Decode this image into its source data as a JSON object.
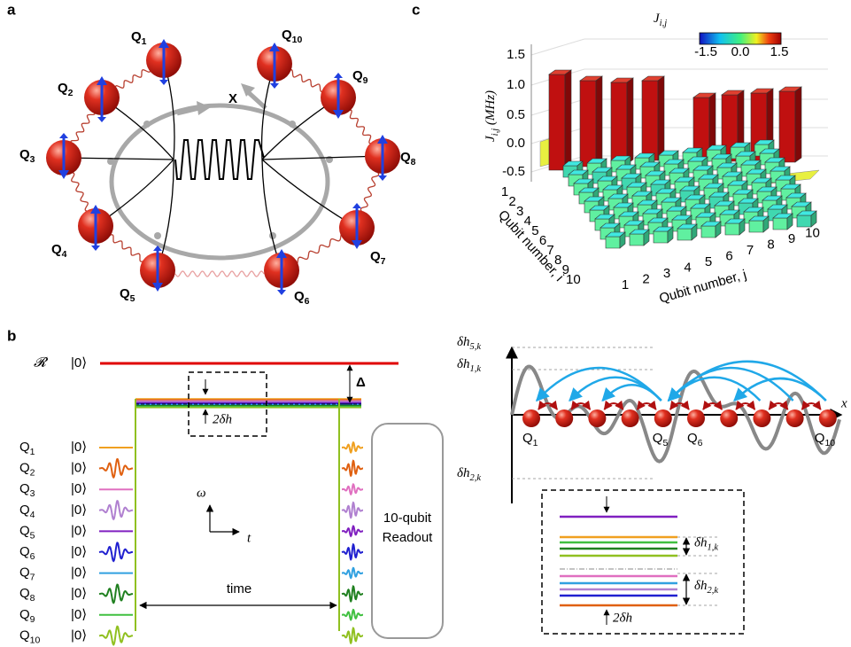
{
  "panel_labels": [
    "a",
    "b",
    "c"
  ],
  "panel_a": {
    "qubits": [
      {
        "base": "Q",
        "sub": "1"
      },
      {
        "base": "Q",
        "sub": "2"
      },
      {
        "base": "Q",
        "sub": "3"
      },
      {
        "base": "Q",
        "sub": "4"
      },
      {
        "base": "Q",
        "sub": "5"
      },
      {
        "base": "Q",
        "sub": "6"
      },
      {
        "base": "Q",
        "sub": "7"
      },
      {
        "base": "Q",
        "sub": "8"
      },
      {
        "base": "Q",
        "sub": "9"
      },
      {
        "base": "Q",
        "sub": "10"
      }
    ],
    "axis_label": "X"
  },
  "panel_b": {
    "reference": "𝓡",
    "ground_state": "|0⟩",
    "detuning": "Δ",
    "spread": "2δh",
    "qubits": [
      {
        "base": "Q",
        "sub": "1",
        "state": "|0⟩"
      },
      {
        "base": "Q",
        "sub": "2",
        "state": "|0⟩"
      },
      {
        "base": "Q",
        "sub": "3",
        "state": "|0⟩"
      },
      {
        "base": "Q",
        "sub": "4",
        "state": "|0⟩"
      },
      {
        "base": "Q",
        "sub": "5",
        "state": "|0⟩"
      },
      {
        "base": "Q",
        "sub": "6",
        "state": "|0⟩"
      },
      {
        "base": "Q",
        "sub": "7",
        "state": "|0⟩"
      },
      {
        "base": "Q",
        "sub": "8",
        "state": "|0⟩"
      },
      {
        "base": "Q",
        "sub": "9",
        "state": "|0⟩"
      },
      {
        "base": "Q",
        "sub": "10",
        "state": "|0⟩"
      }
    ],
    "freq_axis": "ω",
    "time_axis": "t",
    "time_label": "time",
    "readout": [
      "10-qubit",
      "Readout"
    ]
  },
  "panel_c": {
    "colorbar_title": {
      "base": "J",
      "sub": "i,j"
    },
    "colorbar_ticks": [
      "-1.5",
      "0.0",
      "1.5"
    ],
    "z_ticks": [
      "1.5",
      "1.0",
      "0.5",
      "0.0",
      "-0.5"
    ],
    "z_label": {
      "base": "J",
      "sub": "i,j",
      "unit": " (MHz)"
    },
    "i_label": "Qubit number, i",
    "j_label": "Qubit number, j",
    "i_ticks": [
      "1",
      "2",
      "3",
      "4",
      "5",
      "6",
      "7",
      "8",
      "9",
      "10"
    ],
    "j_ticks": [
      "1",
      "2",
      "3",
      "4",
      "5",
      "6",
      "7",
      "8",
      "9",
      "10"
    ]
  },
  "panel_d": {
    "levels": [
      {
        "base": "δh",
        "sub": "5,k"
      },
      {
        "base": "δh",
        "sub": "1,k"
      },
      {
        "base": "δh",
        "sub": "2,k"
      }
    ],
    "axis_label": "x",
    "qubit_labels": [
      {
        "base": "Q",
        "sub": "1"
      },
      {
        "base": "Q",
        "sub": "5"
      },
      {
        "base": "Q",
        "sub": "6"
      },
      {
        "base": "Q",
        "sub": "10"
      }
    ],
    "inset": {
      "levels": [
        {
          "base": "δh",
          "sub": "1,k"
        },
        {
          "base": "δh",
          "sub": "2,k"
        }
      ],
      "spread": "2δh"
    }
  }
}
